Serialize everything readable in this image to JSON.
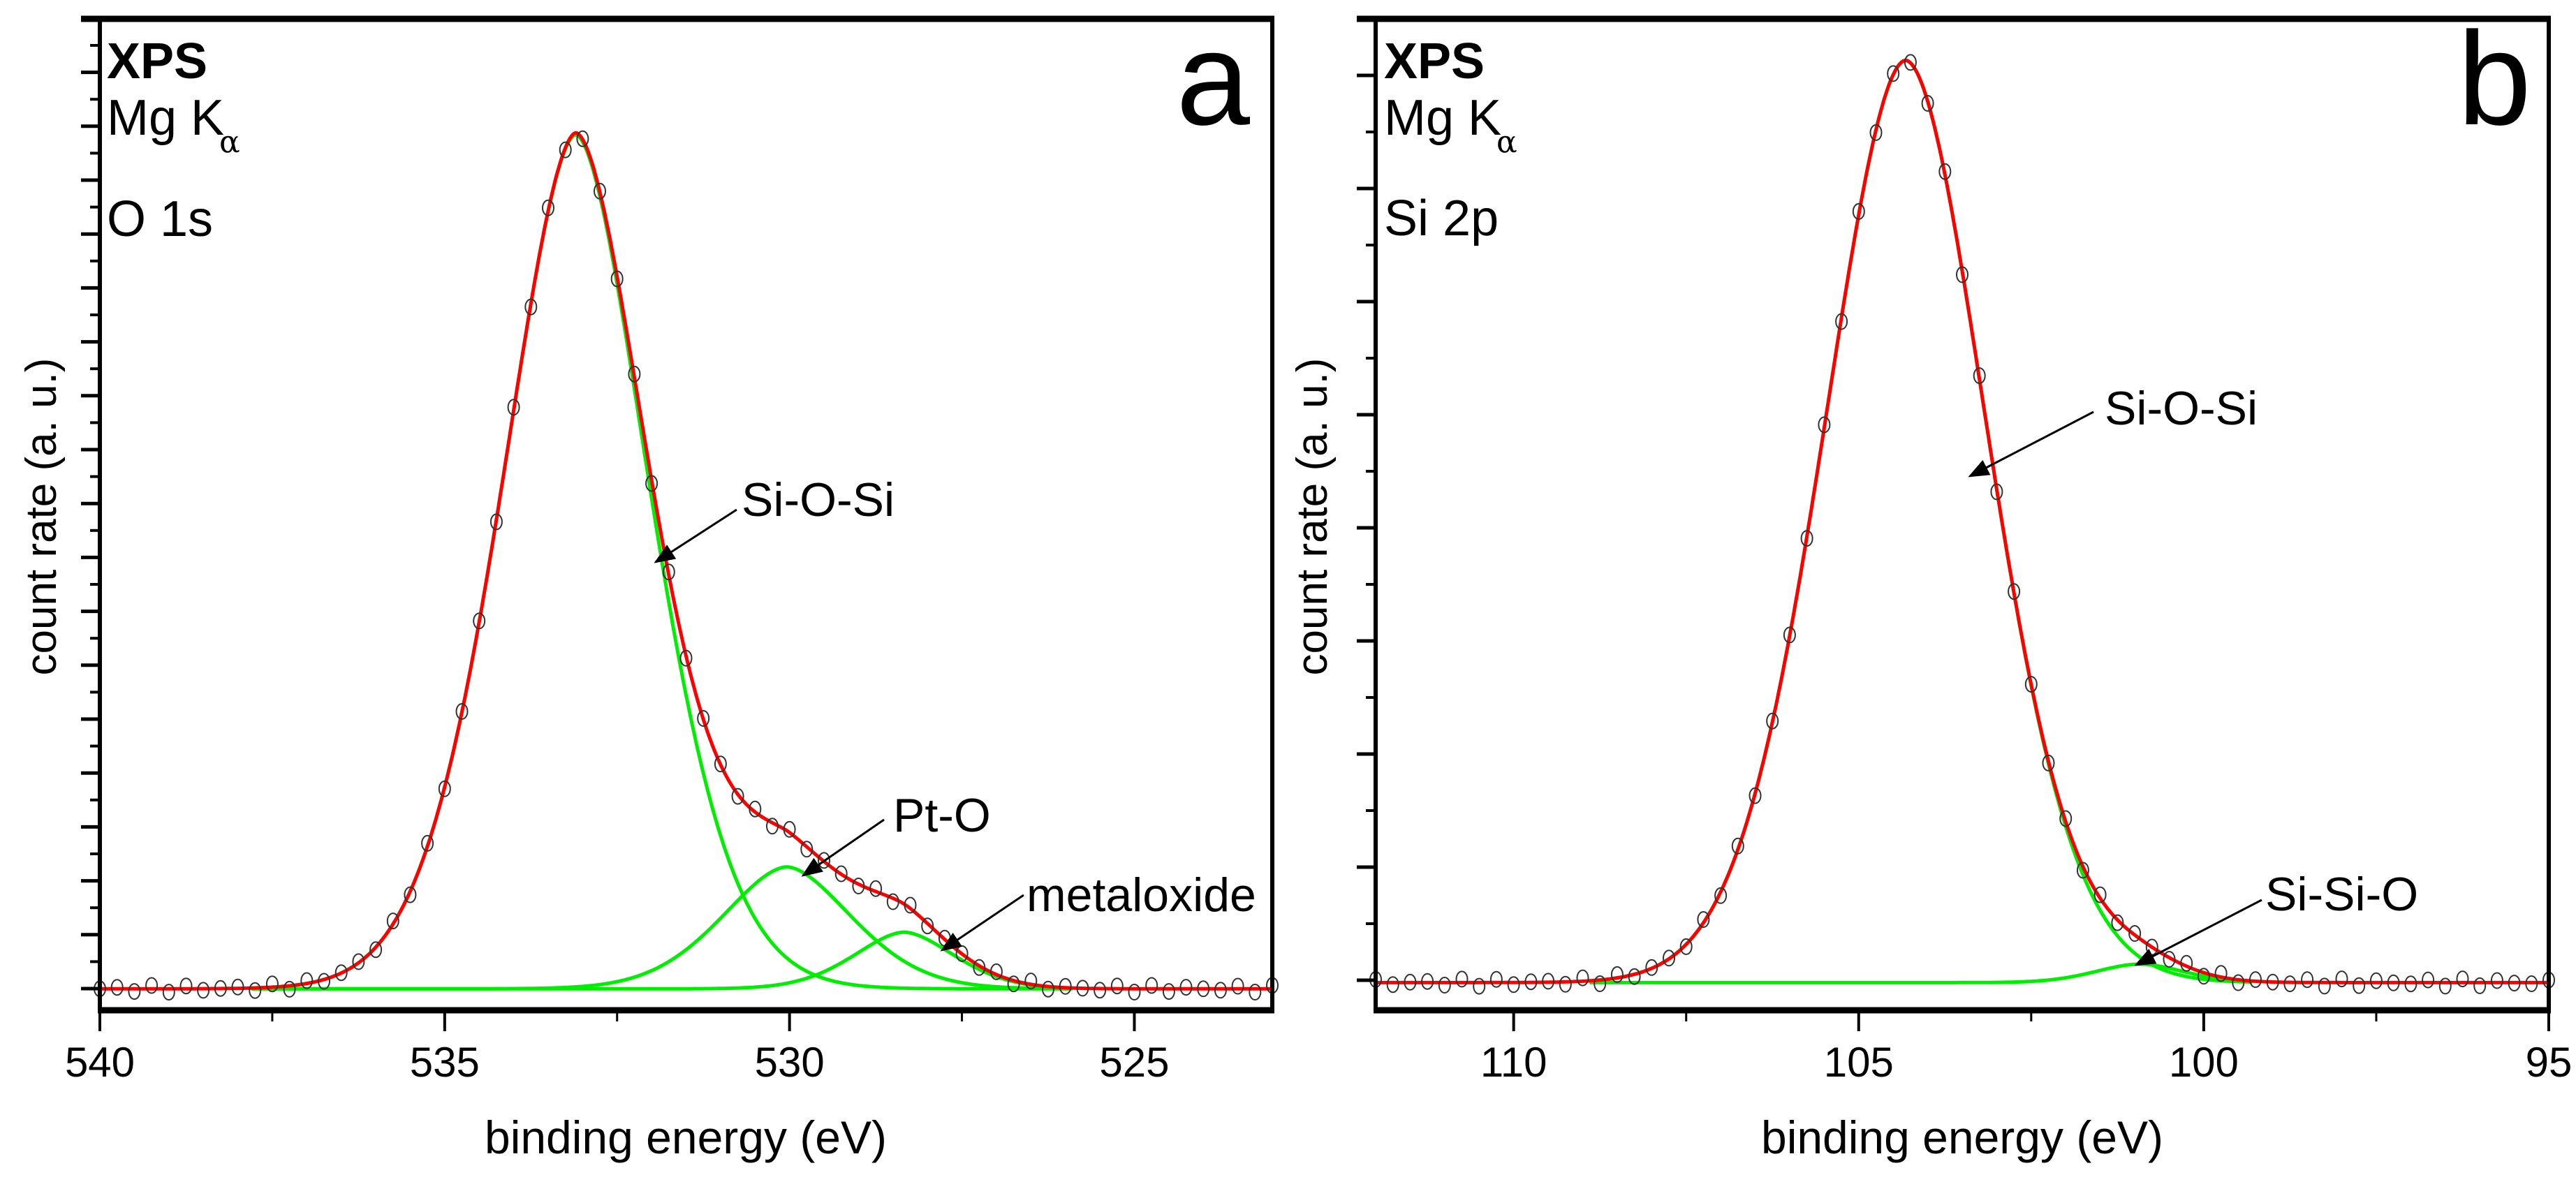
{
  "chart_data": [
    {
      "type": "line",
      "panel_letter": "a",
      "technique": "XPS",
      "source": "Mg K",
      "source_subscript": "α",
      "region": "O 1s",
      "xlabel": "binding energy (eV)",
      "ylabel": "count rate (a. u.)",
      "xlim": [
        540,
        523
      ],
      "ylim": [
        -0.025,
        1.13
      ],
      "x_ticks": [
        540,
        535,
        530,
        525
      ],
      "x_tick_labels": [
        "540",
        "535",
        "530",
        "525"
      ],
      "x_minor_ticks": [
        537.5,
        532.5,
        527.5
      ],
      "y_tick_labels_shown": false,
      "experimental_points": {
        "marker": "open-circle",
        "color": "#000000",
        "step_eV": 0.25
      },
      "fit_envelope": {
        "color": "#ff0000"
      },
      "fit_range": [
        537.8,
        525.9
      ],
      "components": [
        {
          "name": "Si-O-Si",
          "center": 533.1,
          "height": 0.995,
          "fwhm": 2.5,
          "shape": 1.75,
          "color": "#00ee00"
        },
        {
          "name": "Pt-O",
          "center": 530.04,
          "height": 0.142,
          "fwhm": 2.2,
          "shape": 1.75,
          "color": "#00ee00"
        },
        {
          "name": "metaloxide",
          "center": 528.34,
          "height": 0.066,
          "fwhm": 1.7,
          "shape": 1.75,
          "color": "#00ee00"
        }
      ],
      "annotations": [
        "Si-O-Si",
        "Pt-O",
        "metaloxide"
      ]
    },
    {
      "type": "line",
      "panel_letter": "b",
      "technique": "XPS",
      "source": "Mg K",
      "source_subscript": "α",
      "region": "Si 2p",
      "xlabel": "binding energy (eV)",
      "ylabel": "count rate (a. u.)",
      "xlim": [
        112,
        95
      ],
      "ylim": [
        -0.03,
        1.045
      ],
      "x_ticks": [
        110,
        105,
        100,
        95
      ],
      "x_tick_labels": [
        "110",
        "105",
        "100",
        "95"
      ],
      "x_minor_ticks": [
        107.5,
        102.5,
        97.5
      ],
      "y_tick_labels_shown": false,
      "experimental_points": {
        "marker": "open-circle",
        "color": "#000000",
        "step_eV": 0.25
      },
      "fit_envelope": {
        "color": "#ff0000"
      },
      "fit_range": [
        108.9,
        99.3
      ],
      "components": [
        {
          "name": "Si-O-Si",
          "center": 104.32,
          "height": 1.0,
          "fwhm": 2.79,
          "shape": 1.85,
          "color": "#00ee00"
        },
        {
          "name": "Si-Si-O",
          "center": 100.93,
          "height": 0.02,
          "fwhm": 1.5,
          "shape": 1.85,
          "color": "#00ee00"
        }
      ],
      "annotations": [
        "Si-O-Si",
        "Si-Si-O"
      ]
    }
  ]
}
